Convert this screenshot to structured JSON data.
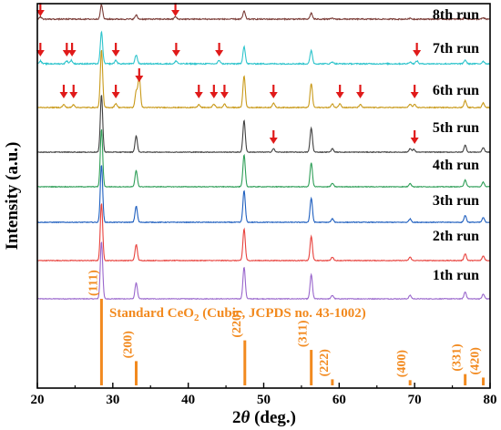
{
  "chart_data": {
    "type": "line",
    "xlabel_parts": [
      "2",
      "θ",
      " (deg.)"
    ],
    "ylabel": "Intensity (a.u.)",
    "xlim": [
      20,
      80
    ],
    "xticks": [
      20,
      30,
      40,
      50,
      60,
      70,
      80
    ],
    "grid": false,
    "legend": "none",
    "baseline_peaks_2theta": [
      28.5,
      33.1,
      47.4,
      56.3,
      59.1,
      69.4,
      76.7,
      79.1
    ],
    "baseline_peak_heights": [
      1.0,
      0.28,
      0.55,
      0.42,
      0.06,
      0.06,
      0.12,
      0.08
    ],
    "series": [
      {
        "name": "1th run",
        "color": "#9966cc",
        "peak_scale": 1.0,
        "noise": 0.012,
        "extra_peaks": []
      },
      {
        "name": "2th run",
        "color": "#e8413c",
        "peak_scale": 1.0,
        "noise": 0.012,
        "extra_peaks": []
      },
      {
        "name": "3th run",
        "color": "#1f5fbf",
        "peak_scale": 1.0,
        "noise": 0.012,
        "extra_peaks": []
      },
      {
        "name": "4th run",
        "color": "#2e9e57",
        "peak_scale": 1.0,
        "noise": 0.012,
        "extra_peaks": []
      },
      {
        "name": "5th run",
        "color": "#404040",
        "peak_scale": 1.0,
        "noise": 0.012,
        "extra_peaks": [
          [
            51.3,
            0.06
          ],
          [
            69.9,
            0.05
          ]
        ]
      },
      {
        "name": "6th run",
        "color": "#c99a1a",
        "peak_scale": 1.0,
        "noise": 0.015,
        "extra_peaks": [
          [
            23.5,
            0.05
          ],
          [
            24.8,
            0.05
          ],
          [
            30.4,
            0.07
          ],
          [
            33.5,
            0.55
          ],
          [
            41.4,
            0.05
          ],
          [
            43.4,
            0.06
          ],
          [
            44.8,
            0.06
          ],
          [
            51.3,
            0.08
          ],
          [
            60.1,
            0.07
          ],
          [
            62.8,
            0.05
          ],
          [
            70.0,
            0.05
          ]
        ]
      },
      {
        "name": "7th run",
        "color": "#2ec4cc",
        "peak_scale": 0.55,
        "noise": 0.02,
        "extra_peaks": [
          [
            20.4,
            0.05
          ],
          [
            23.9,
            0.05
          ],
          [
            24.5,
            0.06
          ],
          [
            30.4,
            0.06
          ],
          [
            38.4,
            0.05
          ],
          [
            44.1,
            0.06
          ],
          [
            70.3,
            0.05
          ]
        ]
      },
      {
        "name": "8th run",
        "color": "#7a3b36",
        "peak_scale": 0.25,
        "noise": 0.02,
        "extra_peaks": [
          [
            20.4,
            0.04
          ],
          [
            38.3,
            0.04
          ]
        ]
      }
    ],
    "arrows_2theta": {
      "5th run": [
        51.3,
        70.0
      ],
      "6th run": [
        23.5,
        24.8,
        30.4,
        33.5,
        41.4,
        43.4,
        44.8,
        51.3,
        60.1,
        62.8,
        70.0
      ],
      "7th run": [
        20.4,
        23.9,
        24.6,
        30.4,
        38.4,
        44.1,
        70.3
      ],
      "8th run": [
        20.4,
        38.3
      ]
    },
    "arrow_color": "#e01a1a",
    "reference": {
      "label_parts": [
        "Standard CeO",
        "2",
        " (Cubic, JCPDS no. 43-1002)"
      ],
      "color": "#f28a1f",
      "peaks": [
        {
          "hkl": "(111)",
          "two_theta": 28.5,
          "intensity": 100
        },
        {
          "hkl": "(200)",
          "two_theta": 33.1,
          "intensity": 28
        },
        {
          "hkl": "(220)",
          "two_theta": 47.5,
          "intensity": 52
        },
        {
          "hkl": "(311)",
          "two_theta": 56.3,
          "intensity": 41
        },
        {
          "hkl": "(222)",
          "two_theta": 59.1,
          "intensity": 7
        },
        {
          "hkl": "(400)",
          "two_theta": 69.4,
          "intensity": 6
        },
        {
          "hkl": "(331)",
          "two_theta": 76.7,
          "intensity": 13
        },
        {
          "hkl": "(420)",
          "two_theta": 79.1,
          "intensity": 9
        }
      ]
    }
  }
}
